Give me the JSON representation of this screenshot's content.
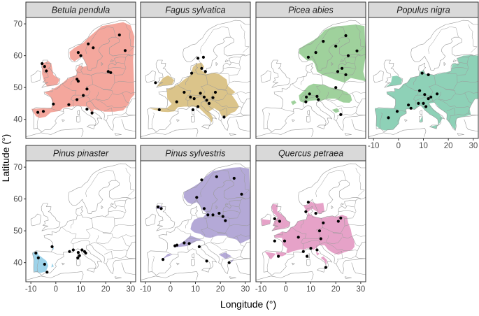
{
  "chart_data": {
    "type": "scatter",
    "xlabel": "Longitude (°)",
    "ylabel": "Latitude (°)",
    "xlim": [
      -12,
      32
    ],
    "ylim": [
      34,
      72
    ],
    "x_ticks": [
      -10,
      0,
      10,
      20,
      30
    ],
    "y_ticks": [
      40,
      50,
      60,
      70
    ],
    "x_tick_labels": [
      "-10",
      "0",
      "10",
      "20",
      "30"
    ],
    "y_tick_labels": [
      "40",
      "50",
      "60",
      "70"
    ],
    "colors": {
      "Betula pendula": "#f4a79d",
      "Fagus sylvatica": "#dbc48a",
      "Picea abies": "#9fd19c",
      "Populus nigra": "#8ed1b7",
      "Pinus pinaster": "#9dd3ea",
      "Pinus sylvestris": "#b4a9d7",
      "Quercus petraea": "#e6a2c8",
      "points": "#000000",
      "map_lines": "#9a9a9a",
      "strip_bg": "#d9d9d9",
      "panel_border": "#333333"
    },
    "panels": [
      {
        "species": "Betula pendula",
        "points": [
          [
            -5.5,
            57.5
          ],
          [
            -4.5,
            56.6
          ],
          [
            -3.8,
            55.2
          ],
          [
            -7.2,
            42.2
          ],
          [
            -5.0,
            42.5
          ],
          [
            -1.0,
            44.8
          ],
          [
            5.2,
            44.6
          ],
          [
            8.5,
            46.2
          ],
          [
            9.0,
            61.0
          ],
          [
            10.0,
            60.0
          ],
          [
            13.0,
            63.7
          ],
          [
            15.0,
            62.5
          ],
          [
            25.5,
            66.5
          ],
          [
            27.8,
            61.6
          ],
          [
            8.5,
            52.6
          ],
          [
            9.0,
            52.0
          ],
          [
            12.5,
            49.5
          ],
          [
            11.0,
            47.5
          ],
          [
            12.5,
            43.2
          ],
          [
            14.5,
            42.0
          ],
          [
            21.0,
            55.0
          ],
          [
            22.0,
            54.7
          ]
        ]
      },
      {
        "species": "Fagus sylvatica",
        "points": [
          [
            -6.0,
            51.5
          ],
          [
            -4.5,
            43.0
          ],
          [
            2.5,
            45.5
          ],
          [
            5.5,
            48.5
          ],
          [
            8.5,
            54.5
          ],
          [
            12.5,
            56.0
          ],
          [
            13.2,
            59.5
          ],
          [
            11.0,
            59.2
          ],
          [
            14.0,
            55.0
          ],
          [
            8.0,
            47.0
          ],
          [
            9.5,
            46.5
          ],
          [
            12.0,
            48.2
          ],
          [
            13.5,
            47.0
          ],
          [
            14.5,
            46.0
          ],
          [
            15.5,
            45.0
          ],
          [
            17.0,
            46.8
          ],
          [
            18.0,
            48.5
          ],
          [
            9.0,
            43.0
          ],
          [
            11.0,
            44.0
          ],
          [
            21.5,
            40.7
          ]
        ]
      },
      {
        "species": "Picea abies",
        "points": [
          [
            9.0,
            59.5
          ],
          [
            12.0,
            61.0
          ],
          [
            15.0,
            64.5
          ],
          [
            20.0,
            63.0
          ],
          [
            24.0,
            66.3
          ],
          [
            28.5,
            61.5
          ],
          [
            25.0,
            60.0
          ],
          [
            20.8,
            55.0
          ],
          [
            22.5,
            56.0
          ],
          [
            24.0,
            54.0
          ],
          [
            8.2,
            47.0
          ],
          [
            9.5,
            48.0
          ],
          [
            12.5,
            47.2
          ],
          [
            13.0,
            46.2
          ],
          [
            8.0,
            45.5
          ],
          [
            20.0,
            50.0
          ],
          [
            22.0,
            41.5
          ]
        ]
      },
      {
        "species": "Populus nigra",
        "points": [
          [
            -4.0,
            40.5
          ],
          [
            -0.5,
            42.5
          ],
          [
            4.0,
            44.5
          ],
          [
            5.0,
            43.5
          ],
          [
            8.0,
            45.0
          ],
          [
            8.5,
            49.0
          ],
          [
            10.5,
            47.8
          ],
          [
            12.0,
            46.5
          ],
          [
            10.0,
            45.0
          ],
          [
            11.0,
            44.0
          ],
          [
            13.0,
            47.0
          ],
          [
            15.5,
            48.0
          ],
          [
            9.5,
            54.5
          ],
          [
            12.0,
            54.0
          ]
        ]
      },
      {
        "species": "Pinus pinaster",
        "points": [
          [
            -8.0,
            43.0
          ],
          [
            -7.0,
            41.5
          ],
          [
            -4.5,
            39.5
          ],
          [
            -3.5,
            37.0
          ],
          [
            -1.5,
            45.0
          ],
          [
            5.5,
            43.5
          ],
          [
            7.0,
            44.0
          ],
          [
            9.0,
            43.2
          ],
          [
            9.5,
            42.2
          ],
          [
            10.5,
            44.0
          ],
          [
            11.5,
            43.5
          ],
          [
            12.0,
            43.0
          ],
          [
            8.8,
            41.5
          ]
        ]
      },
      {
        "species": "Pinus sylvestris",
        "points": [
          [
            -5.0,
            57.5
          ],
          [
            -3.7,
            57.0
          ],
          [
            -3.0,
            41.0
          ],
          [
            1.8,
            45.3
          ],
          [
            2.6,
            45.5
          ],
          [
            5.5,
            46.2
          ],
          [
            7.5,
            46.0
          ],
          [
            10.5,
            60.5
          ],
          [
            12.5,
            66.0
          ],
          [
            18.5,
            67.0
          ],
          [
            25.5,
            66.5
          ],
          [
            28.5,
            61.5
          ],
          [
            13.5,
            57.0
          ],
          [
            15.0,
            55.0
          ],
          [
            17.0,
            55.0
          ],
          [
            19.5,
            55.5
          ],
          [
            21.0,
            54.5
          ],
          [
            22.0,
            53.2
          ],
          [
            11.5,
            45.0
          ],
          [
            14.5,
            40.5
          ],
          [
            23.5,
            40.0
          ]
        ]
      },
      {
        "species": "Quercus petraea",
        "points": [
          [
            -4.5,
            53.8
          ],
          [
            -2.5,
            53.0
          ],
          [
            -4.5,
            46.8
          ],
          [
            -0.5,
            46.8
          ],
          [
            -3.0,
            42.0
          ],
          [
            5.0,
            48.0
          ],
          [
            8.0,
            56.0
          ],
          [
            9.0,
            59.0
          ],
          [
            12.0,
            55.5
          ],
          [
            13.5,
            50.0
          ],
          [
            15.0,
            52.5
          ],
          [
            21.0,
            53.0
          ],
          [
            22.0,
            54.0
          ],
          [
            14.0,
            47.5
          ],
          [
            16.0,
            38.5
          ],
          [
            10.0,
            44.5
          ],
          [
            12.5,
            44.0
          ],
          [
            7.0,
            43.5
          ],
          [
            8.5,
            42.0
          ]
        ]
      }
    ]
  }
}
